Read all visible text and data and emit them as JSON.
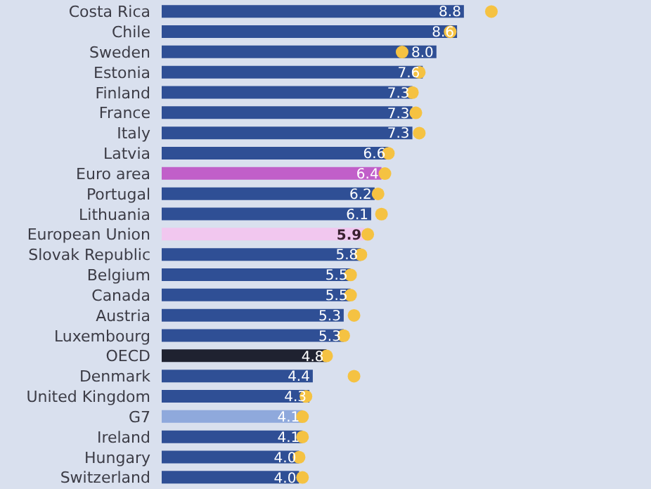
{
  "chart_data": {
    "type": "bar",
    "orientation": "horizontal",
    "categories": [
      "Costa Rica",
      "Chile",
      "Sweden",
      "Estonia",
      "Finland",
      "France",
      "Italy",
      "Latvia",
      "Euro area",
      "Portugal",
      "Lithuania",
      "European Union",
      "Slovak Republic",
      "Belgium",
      "Canada",
      "Austria",
      "Luxembourg",
      "OECD",
      "Denmark",
      "United Kingdom",
      "G7",
      "Ireland",
      "Hungary",
      "Switzerland"
    ],
    "series": [
      {
        "values": [
          8.8,
          8.6,
          8.0,
          7.6,
          7.3,
          7.3,
          7.3,
          6.6,
          6.4,
          6.2,
          6.1,
          5.9,
          5.8,
          5.5,
          5.5,
          5.3,
          5.3,
          4.8,
          4.4,
          4.3,
          4.1,
          4.1,
          4.0,
          4.0
        ],
        "value_labels": [
          "8.8",
          "8.6",
          "8.0",
          "7.6",
          "7.3",
          "7.3",
          "7.3",
          "6.6",
          "6.4",
          "6.2",
          "6.1",
          "5.9",
          "5.8",
          "5.5",
          "5.5",
          "5.3",
          "5.3",
          "4.8",
          "4.4",
          "4.3",
          "4.1",
          "4.1",
          "4.0",
          "4.0"
        ],
        "colors": [
          "#2f4f95",
          "#2f4f95",
          "#2f4f95",
          "#2f4f95",
          "#2f4f95",
          "#2f4f95",
          "#2f4f95",
          "#2f4f95",
          "#c15fc9",
          "#2f4f95",
          "#2f4f95",
          "#f1c7ef",
          "#2f4f95",
          "#2f4f95",
          "#2f4f95",
          "#2f4f95",
          "#2f4f95",
          "#1f2230",
          "#2f4f95",
          "#2f4f95",
          "#8fa9dc",
          "#2f4f95",
          "#2f4f95",
          "#2f4f95"
        ]
      },
      {
        "type": "scatter",
        "color": "#f5c242",
        "values": [
          9.6,
          8.4,
          7.0,
          7.5,
          7.3,
          7.4,
          7.5,
          6.6,
          6.5,
          6.3,
          6.4,
          6.0,
          5.8,
          5.5,
          5.5,
          5.6,
          5.3,
          4.8,
          5.6,
          4.2,
          4.1,
          4.1,
          4.0,
          4.1
        ]
      }
    ],
    "legend": false,
    "marker": "circle"
  }
}
